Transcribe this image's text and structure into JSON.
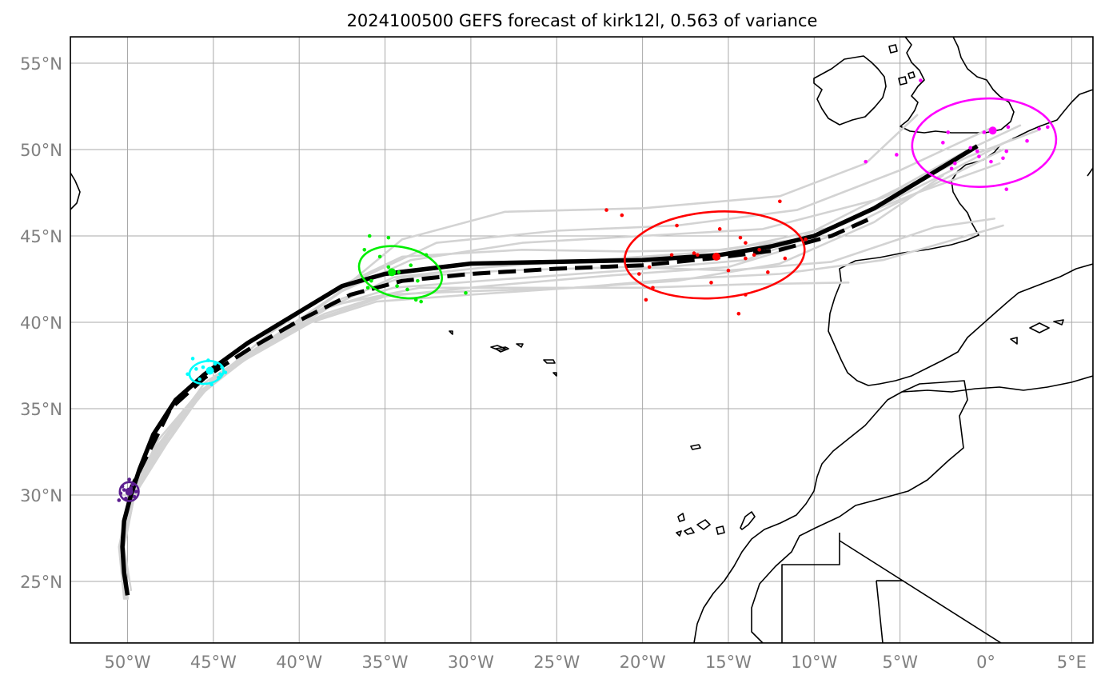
{
  "title": "2024100500 GEFS forecast of kirk12l, 0.563 of variance",
  "lon_labels": [
    "50°W",
    "45°W",
    "40°W",
    "35°W",
    "30°W",
    "25°W",
    "20°W",
    "15°W",
    "10°W",
    "5°W",
    "0°",
    "5°E"
  ],
  "lat_labels": [
    "55°N",
    "50°N",
    "45°N",
    "40°N",
    "35°N",
    "30°N",
    "25°N"
  ],
  "chart_data": {
    "type": "map",
    "extent": {
      "lon": [
        -53.2,
        6.0
      ],
      "lat": [
        21.3,
        56.5
      ]
    },
    "grid": true,
    "lon_ticks": [
      -50,
      -45,
      -40,
      -35,
      -30,
      -25,
      -20,
      -15,
      -10,
      -5,
      0,
      5
    ],
    "lat_ticks": [
      25,
      30,
      35,
      40,
      45,
      50,
      55
    ],
    "colors": {
      "mean_track": "#000000",
      "members": "#d3d3d3",
      "coast": "#000000",
      "grid": "#a9a9a9",
      "ellipse_t1": "#5b1e8f",
      "ellipse_t2": "#00ffff",
      "ellipse_t3": "#00ee00",
      "ellipse_t4": "#ff0000",
      "ellipse_t5": "#ff00ff"
    },
    "mean_track": [
      [
        -50.0,
        24.2
      ],
      [
        -50.2,
        25.5
      ],
      [
        -50.3,
        27.0
      ],
      [
        -50.2,
        28.5
      ],
      [
        -49.8,
        30.0
      ],
      [
        -49.3,
        31.5
      ],
      [
        -48.5,
        33.5
      ],
      [
        -47.2,
        35.5
      ],
      [
        -45.5,
        37.0
      ],
      [
        -43.0,
        38.8
      ],
      [
        -40.0,
        40.6
      ],
      [
        -37.5,
        42.1
      ],
      [
        -35.0,
        42.8
      ],
      [
        -30.0,
        43.4
      ],
      [
        -25.0,
        43.5
      ],
      [
        -20.0,
        43.6
      ],
      [
        -15.5,
        43.9
      ],
      [
        -12.5,
        44.4
      ],
      [
        -10.0,
        45.0
      ],
      [
        -6.5,
        46.6
      ],
      [
        -3.5,
        48.4
      ],
      [
        -1.5,
        49.6
      ],
      [
        -0.5,
        50.2
      ]
    ],
    "dashed_track": [
      [
        -50.0,
        30.0
      ],
      [
        -49.0,
        32.0
      ],
      [
        -47.5,
        35.0
      ],
      [
        -45.5,
        36.8
      ],
      [
        -43.0,
        38.4
      ],
      [
        -40.0,
        40.1
      ],
      [
        -37.0,
        41.6
      ],
      [
        -34.0,
        42.4
      ],
      [
        -30.0,
        42.8
      ],
      [
        -25.0,
        43.1
      ],
      [
        -20.0,
        43.3
      ],
      [
        -16.0,
        43.7
      ],
      [
        -12.0,
        44.2
      ],
      [
        -9.0,
        45.0
      ],
      [
        -6.5,
        46.1
      ]
    ],
    "member_tracks": [
      [
        [
          -50.2,
          24.0
        ],
        [
          -50.5,
          27.0
        ],
        [
          -49.8,
          30.2
        ],
        [
          -48.0,
          33.0
        ],
        [
          -45.5,
          36.0
        ],
        [
          -42.0,
          38.8
        ],
        [
          -38.0,
          41.5
        ],
        [
          -34.0,
          44.8
        ],
        [
          -28.0,
          46.4
        ],
        [
          -20.0,
          46.6
        ],
        [
          -12.0,
          47.3
        ],
        [
          -7.0,
          49.2
        ],
        [
          -4.0,
          52.0
        ]
      ],
      [
        [
          -50.0,
          24.0
        ],
        [
          -50.3,
          27.0
        ],
        [
          -49.6,
          30.0
        ],
        [
          -47.6,
          33.5
        ],
        [
          -45.0,
          36.8
        ],
        [
          -41.0,
          39.5
        ],
        [
          -36.5,
          42.5
        ],
        [
          -32.0,
          44.6
        ],
        [
          -25.0,
          45.3
        ],
        [
          -18.0,
          45.6
        ],
        [
          -11.0,
          46.5
        ],
        [
          -5.0,
          48.8
        ],
        [
          0.2,
          51.2
        ]
      ],
      [
        [
          -50.0,
          24.0
        ],
        [
          -50.2,
          27.0
        ],
        [
          -49.6,
          30.0
        ],
        [
          -47.8,
          33.0
        ],
        [
          -45.2,
          36.5
        ],
        [
          -41.5,
          39.0
        ],
        [
          -37.5,
          41.8
        ],
        [
          -33.5,
          43.6
        ],
        [
          -27.0,
          44.6
        ],
        [
          -20.0,
          45.0
        ],
        [
          -13.0,
          45.4
        ],
        [
          -6.0,
          47.2
        ],
        [
          -1.0,
          49.6
        ],
        [
          3.0,
          51.1
        ]
      ],
      [
        [
          -50.1,
          24.0
        ],
        [
          -50.4,
          27.0
        ],
        [
          -49.8,
          30.0
        ],
        [
          -48.2,
          33.2
        ],
        [
          -45.8,
          36.0
        ],
        [
          -42.5,
          38.4
        ],
        [
          -38.5,
          40.8
        ],
        [
          -34.5,
          42.0
        ],
        [
          -28.0,
          42.5
        ],
        [
          -21.0,
          43.0
        ],
        [
          -14.0,
          43.6
        ],
        [
          -8.0,
          45.8
        ],
        [
          -2.0,
          48.8
        ],
        [
          1.5,
          50.6
        ]
      ],
      [
        [
          -50.0,
          24.0
        ],
        [
          -50.3,
          27.0
        ],
        [
          -49.8,
          30.1
        ],
        [
          -48.3,
          32.8
        ],
        [
          -46.0,
          35.8
        ],
        [
          -43.0,
          38.0
        ],
        [
          -39.0,
          40.2
        ],
        [
          -35.0,
          41.5
        ],
        [
          -29.0,
          42.1
        ],
        [
          -22.0,
          42.7
        ],
        [
          -15.0,
          43.2
        ],
        [
          -9.0,
          45.0
        ],
        [
          -3.0,
          48.0
        ],
        [
          1.0,
          50.0
        ]
      ],
      [
        [
          -50.0,
          24.0
        ],
        [
          -50.2,
          27.0
        ],
        [
          -49.7,
          30.0
        ],
        [
          -48.0,
          33.0
        ],
        [
          -45.5,
          36.2
        ],
        [
          -42.0,
          38.8
        ],
        [
          -38.0,
          41.2
        ],
        [
          -34.0,
          42.6
        ],
        [
          -28.0,
          43.0
        ],
        [
          -21.0,
          43.2
        ],
        [
          -15.0,
          43.0
        ],
        [
          -9.0,
          43.5
        ],
        [
          -3.0,
          45.5
        ],
        [
          0.5,
          46.0
        ]
      ],
      [
        [
          -50.0,
          24.0
        ],
        [
          -50.3,
          27.0
        ],
        [
          -49.7,
          30.0
        ],
        [
          -48.0,
          33.0
        ],
        [
          -45.5,
          36.5
        ],
        [
          -42.0,
          38.8
        ],
        [
          -38.0,
          41.0
        ],
        [
          -33.0,
          42.0
        ],
        [
          -26.0,
          42.0
        ],
        [
          -20.0,
          42.0
        ],
        [
          -14.0,
          42.2
        ],
        [
          -8.0,
          42.3
        ]
      ],
      [
        [
          -50.0,
          24.0
        ],
        [
          -50.2,
          27.0
        ],
        [
          -49.6,
          30.0
        ],
        [
          -47.7,
          33.0
        ],
        [
          -45.3,
          36.4
        ],
        [
          -41.8,
          39.3
        ],
        [
          -37.8,
          42.0
        ],
        [
          -34.0,
          43.8
        ],
        [
          -27.0,
          44.2
        ],
        [
          -21.0,
          44.1
        ],
        [
          -15.0,
          44.2
        ],
        [
          -9.0,
          45.5
        ],
        [
          -4.0,
          47.5
        ],
        [
          0.8,
          49.2
        ]
      ],
      [
        [
          -50.0,
          24.0
        ],
        [
          -50.3,
          27.0
        ],
        [
          -49.8,
          30.0
        ],
        [
          -48.1,
          33.0
        ],
        [
          -45.7,
          36.0
        ],
        [
          -42.5,
          38.5
        ],
        [
          -38.5,
          40.5
        ],
        [
          -35.0,
          41.6
        ],
        [
          -30.0,
          41.8
        ],
        [
          -24.0,
          42.0
        ],
        [
          -18.0,
          42.5
        ],
        [
          -12.0,
          42.8
        ],
        [
          -6.0,
          43.6
        ],
        [
          1.0,
          45.6
        ]
      ],
      [
        [
          -49.8,
          24.5
        ],
        [
          -50.2,
          27.0
        ],
        [
          -49.6,
          30.3
        ],
        [
          -47.8,
          33.3
        ],
        [
          -45.4,
          36.3
        ],
        [
          -42.0,
          38.6
        ],
        [
          -38.2,
          40.9
        ],
        [
          -34.5,
          42.6
        ],
        [
          -29.0,
          43.2
        ],
        [
          -23.0,
          43.6
        ],
        [
          -17.0,
          44.0
        ],
        [
          -11.0,
          44.8
        ],
        [
          -5.0,
          47.8
        ],
        [
          -1.0,
          50.0
        ],
        [
          2.0,
          51.4
        ]
      ],
      [
        [
          -50.2,
          24.2
        ],
        [
          -50.4,
          27.0
        ],
        [
          -49.9,
          30.0
        ],
        [
          -48.3,
          32.7
        ],
        [
          -46.2,
          35.5
        ],
        [
          -43.2,
          37.8
        ],
        [
          -39.3,
          40.0
        ],
        [
          -35.5,
          41.2
        ],
        [
          -30.0,
          41.6
        ],
        [
          -24.0,
          42.0
        ],
        [
          -18.0,
          42.4
        ],
        [
          -12.0,
          43.4
        ],
        [
          -6.5,
          45.8
        ],
        [
          -2.5,
          48.5
        ]
      ]
    ],
    "ellipses": [
      {
        "id": "t1",
        "center": [
          -49.9,
          30.2
        ],
        "rx_deg": 0.55,
        "ry_deg": 0.55,
        "rotation": 0,
        "color": "#5b1e8f",
        "mean": [
          -49.9,
          30.2
        ],
        "points": [
          [
            -50.3,
            30.5
          ],
          [
            -49.6,
            29.9
          ],
          [
            -50.1,
            29.8
          ],
          [
            -49.7,
            30.6
          ],
          [
            -50.4,
            30.1
          ],
          [
            -49.9,
            30.9
          ],
          [
            -50.2,
            30.3
          ],
          [
            -49.5,
            30.2
          ],
          [
            -50.5,
            29.7
          ],
          [
            -49.8,
            30.4
          ]
        ]
      },
      {
        "id": "t2",
        "center": [
          -45.4,
          37.1
        ],
        "rx_deg": 1.0,
        "ry_deg": 0.65,
        "rotation": -10,
        "color": "#00ffff",
        "mean": [
          -45.2,
          37.2
        ],
        "points": [
          [
            -46.2,
            37.9
          ],
          [
            -44.6,
            37.0
          ],
          [
            -45.8,
            36.7
          ],
          [
            -44.5,
            37.4
          ],
          [
            -46.0,
            37.3
          ],
          [
            -45.1,
            36.4
          ],
          [
            -44.9,
            37.6
          ],
          [
            -46.5,
            37.0
          ],
          [
            -45.3,
            37.8
          ],
          [
            -44.7,
            36.8
          ],
          [
            -45.6,
            37.4
          ],
          [
            -44.3,
            37.1
          ]
        ]
      },
      {
        "id": "t3",
        "center": [
          -34.1,
          42.9
        ],
        "rx_deg": 2.45,
        "ry_deg": 1.45,
        "rotation": 12,
        "color": "#00ee00",
        "mean": [
          -34.6,
          42.9
        ],
        "points": [
          [
            -35.9,
            45.0
          ],
          [
            -34.8,
            44.9
          ],
          [
            -36.2,
            44.2
          ],
          [
            -35.3,
            43.8
          ],
          [
            -33.5,
            43.3
          ],
          [
            -32.6,
            43.9
          ],
          [
            -34.2,
            42.9
          ],
          [
            -35.8,
            42.4
          ],
          [
            -34.3,
            42.1
          ],
          [
            -33.1,
            42.4
          ],
          [
            -33.2,
            41.3
          ],
          [
            -36.0,
            42.0
          ],
          [
            -32.9,
            41.2
          ],
          [
            -30.3,
            41.7
          ],
          [
            -34.8,
            43.2
          ],
          [
            -33.7,
            41.9
          ]
        ]
      },
      {
        "id": "t4",
        "center": [
          -15.8,
          43.9
        ],
        "rx_deg": 5.25,
        "ry_deg": 2.5,
        "rotation": -4,
        "color": "#ff0000",
        "mean": [
          -15.7,
          43.8
        ],
        "points": [
          [
            -22.1,
            46.5
          ],
          [
            -21.2,
            46.2
          ],
          [
            -12.0,
            47.0
          ],
          [
            -18.0,
            45.6
          ],
          [
            -15.5,
            45.4
          ],
          [
            -14.3,
            44.9
          ],
          [
            -10.5,
            44.8
          ],
          [
            -14.0,
            44.6
          ],
          [
            -17.0,
            44.0
          ],
          [
            -18.3,
            43.9
          ],
          [
            -13.2,
            44.2
          ],
          [
            -19.6,
            43.2
          ],
          [
            -20.2,
            42.8
          ],
          [
            -16.0,
            42.3
          ],
          [
            -14.0,
            43.7
          ],
          [
            -13.5,
            43.9
          ],
          [
            -11.7,
            43.7
          ],
          [
            -19.4,
            42.0
          ],
          [
            -19.8,
            41.3
          ],
          [
            -14.4,
            40.5
          ],
          [
            -14.0,
            41.6
          ],
          [
            -12.7,
            42.9
          ],
          [
            -15.0,
            43.0
          ],
          [
            -16.8,
            43.9
          ]
        ]
      },
      {
        "id": "t5",
        "center": [
          -0.1,
          50.4
        ],
        "rx_deg": 4.2,
        "ry_deg": 2.55,
        "rotation": -4,
        "color": "#ff00ff",
        "mean": [
          0.4,
          51.1
        ],
        "points": [
          [
            -3.8,
            54.0
          ],
          [
            -2.2,
            51.0
          ],
          [
            -0.9,
            50.1
          ],
          [
            -2.5,
            50.4
          ],
          [
            0.3,
            51.1
          ],
          [
            1.3,
            51.3
          ],
          [
            -0.5,
            49.9
          ],
          [
            1.2,
            49.9
          ],
          [
            -5.2,
            49.7
          ],
          [
            -0.4,
            49.6
          ],
          [
            0.3,
            49.3
          ],
          [
            1.0,
            49.5
          ],
          [
            2.4,
            50.5
          ],
          [
            3.1,
            51.2
          ],
          [
            -2.0,
            48.9
          ],
          [
            1.2,
            47.7
          ],
          [
            -7.0,
            49.3
          ],
          [
            -1.8,
            49.2
          ],
          [
            -0.1,
            51.0
          ],
          [
            3.6,
            51.3
          ]
        ]
      }
    ]
  }
}
